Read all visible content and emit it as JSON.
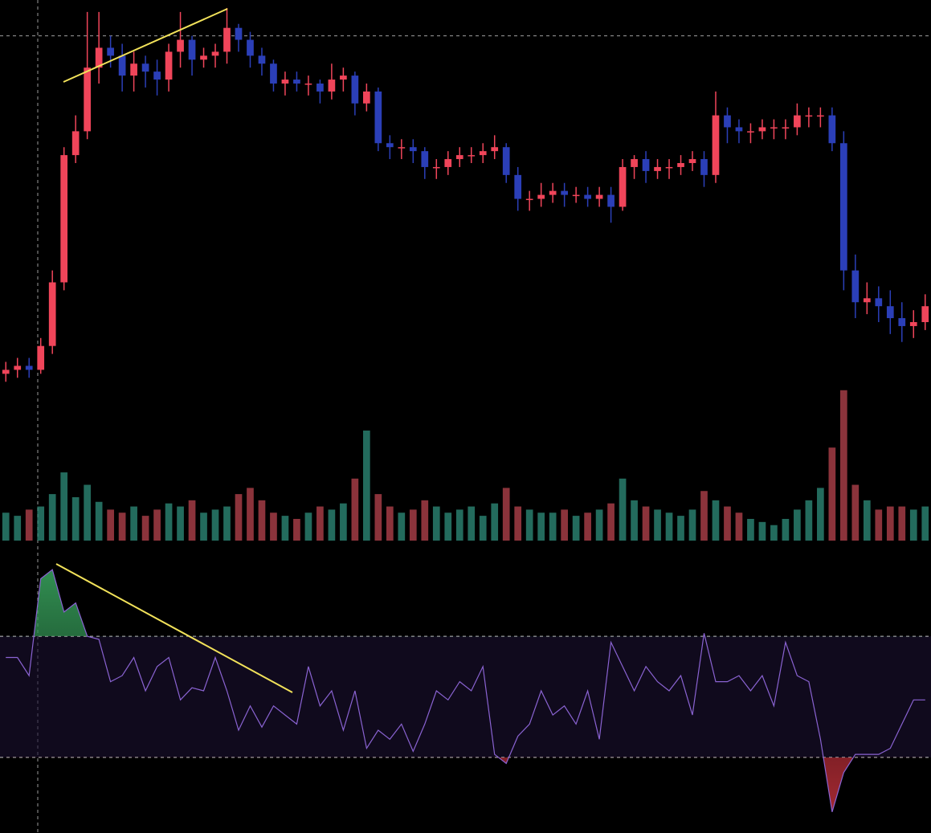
{
  "chart_data": {
    "type": "candlestick",
    "open": [
      7,
      8,
      9,
      8,
      14,
      30,
      62,
      68,
      84,
      89,
      87,
      82,
      85,
      83,
      81,
      88,
      91,
      86,
      87,
      88,
      94,
      91,
      87,
      85,
      80,
      81,
      80,
      80,
      78,
      81,
      82,
      75,
      78,
      65,
      64,
      64,
      63,
      59,
      59,
      61,
      62,
      62,
      63,
      64,
      57,
      51,
      51,
      52,
      53,
      52,
      52,
      51,
      52,
      49,
      59,
      61,
      58,
      59,
      59,
      60,
      61,
      57,
      72,
      69,
      68,
      68,
      69,
      69,
      69,
      72,
      72,
      72,
      65,
      33,
      25,
      26,
      24,
      21,
      19,
      20
    ],
    "high": [
      10,
      11,
      11,
      16,
      33,
      64,
      72,
      98,
      98,
      92,
      90,
      88,
      87,
      86,
      90,
      98,
      92,
      89,
      90,
      99,
      95,
      93,
      89,
      86,
      83,
      83,
      82,
      81,
      85,
      84,
      83,
      80,
      79,
      67,
      66,
      66,
      64,
      61,
      63,
      64,
      64,
      65,
      67,
      65,
      59,
      53,
      55,
      55,
      55,
      54,
      54,
      54,
      54,
      61,
      62,
      63,
      61,
      61,
      62,
      63,
      63,
      78,
      74,
      71,
      70,
      71,
      71,
      71,
      75,
      74,
      74,
      74,
      68,
      37,
      30,
      29,
      28,
      25,
      23,
      27
    ],
    "low": [
      5,
      6,
      6,
      7,
      12,
      28,
      60,
      66,
      80,
      84,
      78,
      78,
      79,
      77,
      78,
      84,
      82,
      84,
      84,
      85,
      88,
      84,
      82,
      78,
      77,
      78,
      77,
      75,
      76,
      78,
      72,
      73,
      63,
      61,
      61,
      60,
      56,
      56,
      57,
      59,
      60,
      60,
      61,
      55,
      48,
      48,
      49,
      50,
      49,
      50,
      49,
      49,
      45,
      48,
      56,
      55,
      56,
      56,
      57,
      58,
      54,
      55,
      65,
      65,
      65,
      66,
      66,
      66,
      67,
      69,
      69,
      63,
      28,
      21,
      22,
      20,
      17,
      15,
      16,
      18
    ],
    "close": [
      8,
      9,
      8,
      14,
      30,
      62,
      68,
      84,
      89,
      87,
      82,
      85,
      83,
      81,
      88,
      91,
      86,
      87,
      88,
      94,
      91,
      87,
      85,
      80,
      81,
      80,
      80,
      78,
      81,
      82,
      75,
      78,
      65,
      64,
      64,
      63,
      59,
      59,
      61,
      62,
      62,
      63,
      64,
      57,
      51,
      51,
      52,
      53,
      52,
      52,
      51,
      52,
      49,
      59,
      61,
      58,
      59,
      59,
      60,
      61,
      57,
      72,
      69,
      68,
      68,
      69,
      69,
      69,
      72,
      72,
      72,
      65,
      33,
      25,
      26,
      24,
      21,
      19,
      20,
      24
    ],
    "volume": [
      18,
      16,
      20,
      22,
      30,
      44,
      28,
      36,
      25,
      20,
      18,
      22,
      16,
      20,
      24,
      22,
      26,
      18,
      20,
      22,
      30,
      34,
      26,
      18,
      16,
      14,
      18,
      22,
      20,
      24,
      40,
      71,
      30,
      22,
      18,
      20,
      26,
      22,
      18,
      20,
      22,
      16,
      24,
      34,
      22,
      20,
      18,
      18,
      20,
      16,
      18,
      20,
      24,
      40,
      26,
      22,
      20,
      18,
      16,
      20,
      32,
      26,
      22,
      18,
      14,
      12,
      10,
      14,
      20,
      26,
      34,
      60,
      97,
      36,
      26,
      20,
      22,
      22,
      20,
      22
    ],
    "rsi": [
      63,
      63,
      57,
      89,
      92,
      78,
      81,
      70,
      69,
      55,
      57,
      63,
      52,
      60,
      63,
      49,
      53,
      52,
      63,
      52,
      39,
      47,
      40,
      47,
      44,
      41,
      60,
      47,
      52,
      39,
      52,
      33,
      39,
      36,
      41,
      32,
      41,
      52,
      49,
      55,
      52,
      60,
      31,
      28,
      37,
      41,
      52,
      44,
      47,
      41,
      52,
      36,
      68,
      60,
      52,
      60,
      55,
      52,
      57,
      44,
      71,
      55,
      55,
      57,
      52,
      57,
      47,
      68,
      57,
      55,
      36,
      12,
      25,
      31,
      31,
      31,
      33,
      41,
      49,
      49
    ],
    "ylim": [
      0,
      100
    ],
    "volume_ylim": [
      0,
      100
    ],
    "rsi_ylim": [
      0,
      100
    ],
    "price_level": 92,
    "rsi_levels": [
      30,
      70
    ],
    "up_color": "#f0455a",
    "down_color": "#2b3fb8",
    "volume_up_color": "#2f8f7c",
    "volume_down_color": "#b9444f",
    "rsi_color": "#8a63d2"
  }
}
